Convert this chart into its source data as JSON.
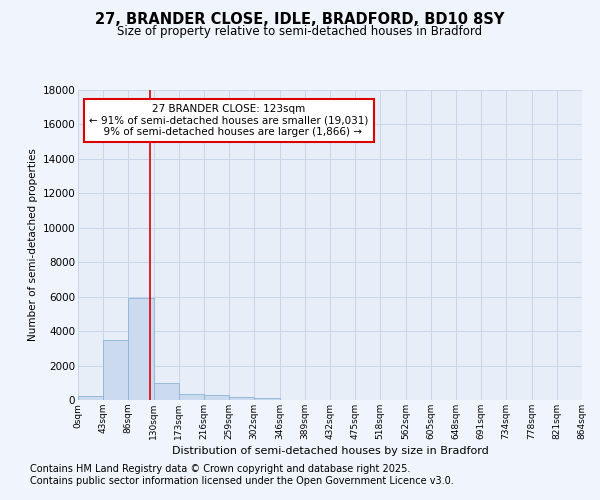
{
  "title1": "27, BRANDER CLOSE, IDLE, BRADFORD, BD10 8SY",
  "title2": "Size of property relative to semi-detached houses in Bradford",
  "xlabel": "Distribution of semi-detached houses by size in Bradford",
  "ylabel": "Number of semi-detached properties",
  "footnote1": "Contains HM Land Registry data © Crown copyright and database right 2025.",
  "footnote2": "Contains public sector information licensed under the Open Government Licence v3.0.",
  "annotation_title": "27 BRANDER CLOSE: 123sqm",
  "annotation_line1": "← 91% of semi-detached houses are smaller (19,031)",
  "annotation_line2": "  9% of semi-detached houses are larger (1,866) →",
  "property_size": 123,
  "bin_edges": [
    0,
    43,
    86,
    130,
    173,
    216,
    259,
    302,
    346,
    389,
    432,
    475,
    518,
    562,
    605,
    648,
    691,
    734,
    778,
    821,
    864
  ],
  "bar_heights": [
    250,
    3500,
    5950,
    980,
    350,
    290,
    160,
    140,
    0,
    0,
    0,
    0,
    0,
    0,
    0,
    0,
    0,
    0,
    0,
    0
  ],
  "bar_color": "#ccdaf0",
  "bar_edge_color": "#8ab4d8",
  "line_color": "#dd0000",
  "grid_color": "#c8d4e8",
  "bg_color": "#e8eef8",
  "fig_bg_color": "#f0f4fc",
  "ylim": [
    0,
    18000
  ],
  "yticks": [
    0,
    2000,
    4000,
    6000,
    8000,
    10000,
    12000,
    14000,
    16000,
    18000
  ]
}
